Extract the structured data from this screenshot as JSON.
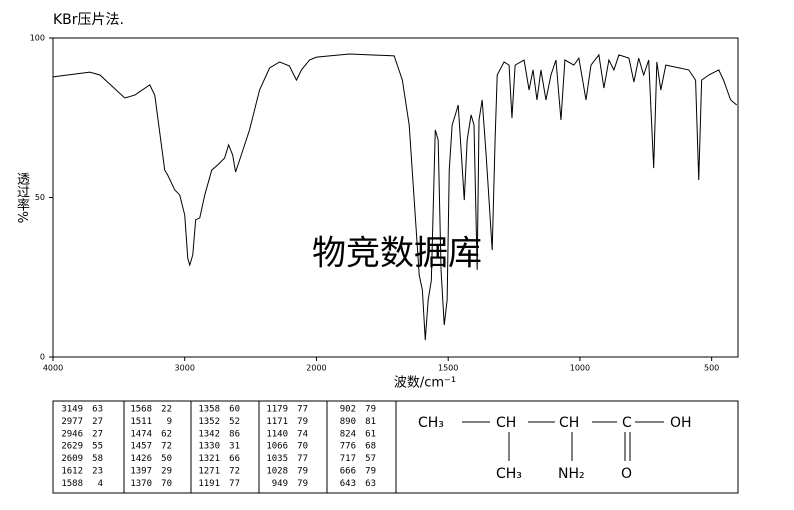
{
  "chart_data": {
    "type": "line",
    "title": "KBr压片法.",
    "xlabel": "波数/cm⁻¹",
    "ylabel": "透过率%",
    "watermark": "物竞数据库",
    "x": [
      4000,
      3720,
      3644,
      3455,
      3379,
      3265,
      3227,
      3152,
      3129,
      3076,
      3038,
      3000,
      2977,
      2962,
      2939,
      2917,
      2886,
      2848,
      2795,
      2750,
      2697,
      2667,
      2636,
      2614,
      2583,
      2508,
      2432,
      2356,
      2280,
      2205,
      2152,
      2114,
      2053,
      2000,
      1875,
      1705,
      1674,
      1648,
      1629,
      1610,
      1598,
      1587,
      1576,
      1564,
      1549,
      1538,
      1527,
      1515,
      1504,
      1496,
      1485,
      1473,
      1462,
      1451,
      1439,
      1428,
      1413,
      1402,
      1390,
      1383,
      1371,
      1356,
      1345,
      1333,
      1322,
      1314,
      1288,
      1269,
      1258,
      1246,
      1212,
      1193,
      1178,
      1163,
      1148,
      1129,
      1110,
      1091,
      1072,
      1057,
      1023,
      1004,
      977,
      958,
      928,
      909,
      890,
      871,
      852,
      814,
      795,
      777,
      758,
      739,
      720,
      708,
      693,
      674,
      587,
      561,
      549,
      538,
      511,
      473,
      455,
      428,
      405
    ],
    "values": [
      87.8,
      89.3,
      88.4,
      81.2,
      82.1,
      85.3,
      82,
      58.6,
      57,
      52.4,
      50.8,
      44.5,
      31,
      28.8,
      32,
      43,
      43.6,
      50.8,
      58.6,
      60.2,
      62.4,
      66.5,
      63.3,
      58,
      61.8,
      71.2,
      83.7,
      90.6,
      92.5,
      91.2,
      86.8,
      90,
      93.1,
      94,
      95,
      94.4,
      86.8,
      72.7,
      49.2,
      25.7,
      21,
      5.3,
      17.9,
      24,
      71.2,
      68,
      27,
      10,
      17.9,
      58.6,
      72.7,
      75.9,
      79,
      64.9,
      49.2,
      68,
      75.9,
      72.7,
      27.3,
      74.3,
      80.6,
      63.3,
      49.2,
      33.5,
      68,
      88.4,
      92.5,
      91.5,
      74.9,
      91.5,
      93.1,
      83.7,
      90,
      80.6,
      90,
      80.6,
      88.4,
      93.1,
      74.3,
      93.1,
      91.5,
      93.7,
      80.6,
      91.5,
      94.7,
      84.3,
      93.1,
      90,
      94.7,
      93.7,
      86.2,
      93.7,
      88.4,
      93.1,
      59.2,
      92.5,
      83.7,
      91.5,
      90,
      86.8,
      55.5,
      86.8,
      88.4,
      90,
      86.8,
      80.6,
      79
    ],
    "color": "#000000",
    "watermark_color": "#b4b4e6",
    "xlim": [
      4000,
      400
    ],
    "xticks": [
      4000,
      3000,
      2000,
      1500,
      1000,
      500
    ],
    "ylim": [
      0,
      100
    ],
    "yticks": [
      0,
      50,
      100
    ]
  },
  "peak_table": [
    [
      [
        3149,
        63
      ],
      [
        2977,
        27
      ],
      [
        2946,
        27
      ],
      [
        2629,
        55
      ],
      [
        2609,
        58
      ],
      [
        1612,
        23
      ],
      [
        1588,
        4
      ]
    ],
    [
      [
        1568,
        22
      ],
      [
        1511,
        9
      ],
      [
        1474,
        62
      ],
      [
        1457,
        72
      ],
      [
        1426,
        50
      ],
      [
        1397,
        29
      ],
      [
        1370,
        70
      ]
    ],
    [
      [
        1358,
        60
      ],
      [
        1352,
        52
      ],
      [
        1342,
        86
      ],
      [
        1330,
        31
      ],
      [
        1321,
        66
      ],
      [
        1271,
        72
      ],
      [
        1191,
        77
      ]
    ],
    [
      [
        1179,
        77
      ],
      [
        1171,
        79
      ],
      [
        1140,
        74
      ],
      [
        1066,
        70
      ],
      [
        1035,
        77
      ],
      [
        1028,
        79
      ],
      [
        949,
        79
      ]
    ],
    [
      [
        902,
        79
      ],
      [
        890,
        81
      ],
      [
        824,
        61
      ],
      [
        776,
        68
      ],
      [
        717,
        57
      ],
      [
        666,
        79
      ],
      [
        643,
        63
      ]
    ]
  ],
  "structure": {
    "atoms": [
      "CH₃",
      "CH",
      "CH",
      "C",
      "OH",
      "CH₃",
      "NH₂",
      "O"
    ]
  }
}
